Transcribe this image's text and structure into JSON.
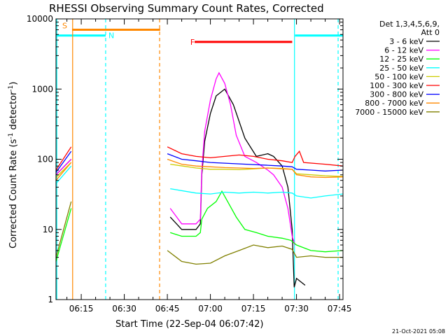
{
  "chart_data": {
    "type": "line",
    "title": "RHESSI Observing Summary Count Rates, Corrected",
    "xlabel": "Start Time (22-Sep-04 06:07:42)",
    "ylabel_main": "Corrected Count Rate (s",
    "ylabel_sup1": "-1",
    "ylabel_mid": " detector",
    "ylabel_sup2": "-1",
    "ylabel_end": ")",
    "x_range_minutes": [
      6.2,
      106.2
    ],
    "ylim": [
      1,
      10000
    ],
    "y_scale": "log",
    "x_ticks": [
      {
        "label": "06:15",
        "minute": 15
      },
      {
        "label": "06:30",
        "minute": 30
      },
      {
        "label": "06:45",
        "minute": 45
      },
      {
        "label": "07:00",
        "minute": 60
      },
      {
        "label": "07:15",
        "minute": 75
      },
      {
        "label": "07:30",
        "minute": 90
      },
      {
        "label": "07:45",
        "minute": 105
      }
    ],
    "y_ticks": [
      {
        "label": "1",
        "value": 1
      },
      {
        "label": "10",
        "value": 10
      },
      {
        "label": "100",
        "value": 100
      },
      {
        "label": "1000",
        "value": 1000
      },
      {
        "label": "10000",
        "value": 10000
      }
    ],
    "legend_header": [
      "Det 1,3,4,5,6,9,",
      "Att 0"
    ],
    "series": [
      {
        "name": "3 - 6 keV",
        "color": "#000000",
        "x": [
          6.2,
          11.5,
          43,
          46,
          50,
          55,
          56.5,
          57,
          58,
          60,
          62,
          65,
          68,
          72,
          76,
          80,
          82,
          85,
          87,
          88.5,
          89.2,
          90,
          93
        ],
        "y": [
          60,
          100,
          null,
          15,
          10,
          10,
          12,
          60,
          180,
          450,
          800,
          1000,
          600,
          200,
          110,
          120,
          110,
          80,
          40,
          10,
          1.5,
          2,
          1.6
        ]
      },
      {
        "name": "6 - 12 keV",
        "color": "#ff00ff",
        "x": [
          6.2,
          11.5,
          43,
          46,
          50,
          55,
          56.5,
          57,
          58,
          60,
          62,
          63,
          65,
          67,
          69,
          72,
          76,
          80,
          82,
          85,
          87,
          88.5,
          89.5
        ],
        "y": [
          60,
          100,
          null,
          20,
          12,
          12,
          14,
          70,
          250,
          700,
          1400,
          1700,
          1200,
          600,
          220,
          110,
          90,
          70,
          60,
          40,
          20,
          8,
          6
        ]
      },
      {
        "name": "12 - 25 keV",
        "color": "#00ff00",
        "x": [
          6.2,
          11.5,
          43,
          46,
          50,
          55,
          56.5,
          57,
          59,
          62,
          64,
          66,
          69,
          72,
          76,
          80,
          85,
          88,
          90,
          95,
          100,
          106.2
        ],
        "y": [
          3.5,
          20,
          null,
          9,
          8,
          8,
          9,
          14,
          20,
          25,
          35,
          25,
          15,
          10,
          9,
          8,
          7.5,
          7,
          6,
          5,
          4.8,
          5
        ]
      },
      {
        "name": "25 - 50 keV",
        "color": "#00ffff",
        "x": [
          6.2,
          11.5,
          43,
          46,
          55,
          60,
          65,
          70,
          75,
          80,
          85,
          88.5,
          90,
          95,
          100,
          106.2
        ],
        "y": [
          45,
          80,
          null,
          38,
          33,
          32,
          34,
          33,
          34,
          33,
          34,
          33,
          30,
          28,
          30,
          32
        ]
      },
      {
        "name": "50 - 100 keV",
        "color": "#cccc00",
        "x": [
          6.2,
          11.5,
          43,
          46,
          55,
          60,
          65,
          70,
          75,
          80,
          85,
          88.5,
          90,
          95,
          100,
          106.2
        ],
        "y": [
          55,
          90,
          null,
          85,
          75,
          72,
          72,
          71,
          73,
          75,
          74,
          72,
          62,
          60,
          58,
          57
        ]
      },
      {
        "name": "100 - 300 keV",
        "color": "#ff0000",
        "x": [
          6.2,
          11.5,
          43,
          45,
          50,
          55,
          60,
          65,
          70,
          75,
          80,
          85,
          88.5,
          89.5,
          91,
          92.5,
          100,
          106.2
        ],
        "y": [
          70,
          150,
          null,
          150,
          120,
          110,
          105,
          110,
          115,
          110,
          100,
          95,
          90,
          110,
          130,
          90,
          85,
          80
        ]
      },
      {
        "name": "300 - 800 keV",
        "color": "#0000ff",
        "x": [
          6.2,
          11.5,
          43,
          45,
          50,
          55,
          60,
          65,
          70,
          75,
          80,
          85,
          88.5,
          90,
          95,
          100,
          106.2
        ],
        "y": [
          65,
          130,
          null,
          120,
          100,
          95,
          90,
          88,
          86,
          84,
          82,
          80,
          78,
          72,
          70,
          68,
          70
        ]
      },
      {
        "name": "800 - 7000 keV",
        "color": "#ff8800",
        "x": [
          6.2,
          11.5,
          43,
          45,
          50,
          55,
          60,
          65,
          70,
          75,
          80,
          85,
          88.5,
          90,
          95,
          100,
          106.2
        ],
        "y": [
          50,
          90,
          null,
          100,
          85,
          80,
          78,
          76,
          75,
          74,
          75,
          73,
          72,
          60,
          56,
          55,
          56
        ]
      },
      {
        "name": "7000 - 15000 keV",
        "color": "#808000",
        "x": [
          6.2,
          11.5,
          43,
          45,
          50,
          55,
          60,
          65,
          70,
          75,
          80,
          85,
          88.5,
          90,
          95,
          100,
          106.2
        ],
        "y": [
          4,
          25,
          null,
          5,
          3.5,
          3.2,
          3.3,
          4.2,
          5,
          6,
          5.5,
          5.8,
          5.2,
          4,
          4.2,
          4,
          4
        ]
      }
    ],
    "flags": [
      {
        "label": "S",
        "color": "#ff8800",
        "x_start": 11.8,
        "x_end": 42.5,
        "y_value": 7000,
        "label_x": 11.8
      },
      {
        "label": "N",
        "color": "#00ffff",
        "x_start": 6.2,
        "x_end": 23.5,
        "y_value": 5800,
        "label_x": 24
      },
      {
        "label": "F",
        "color": "#ff0000",
        "x_start": 54.5,
        "x_end": 88.5,
        "y_value": 4700,
        "label_x": 52.5
      },
      {
        "label": "",
        "color": "#00ffff",
        "x_start": 89.5,
        "x_end": 106.2,
        "y_value": 5800,
        "label_x": 89.5
      }
    ],
    "vlines": [
      {
        "x": 6.5,
        "color": "#00ffff",
        "style": "solid"
      },
      {
        "x": 12.0,
        "color": "#ff8800",
        "style": "solid"
      },
      {
        "x": 23.5,
        "color": "#00ffff",
        "style": "dashed"
      },
      {
        "x": 42.3,
        "color": "#ff8800",
        "style": "dashed"
      },
      {
        "x": 89.3,
        "color": "#00ffff",
        "style": "solid"
      },
      {
        "x": 104.5,
        "color": "#00ffff",
        "style": "dashed"
      }
    ],
    "footer_date": "21-Oct-2021 05:08"
  }
}
